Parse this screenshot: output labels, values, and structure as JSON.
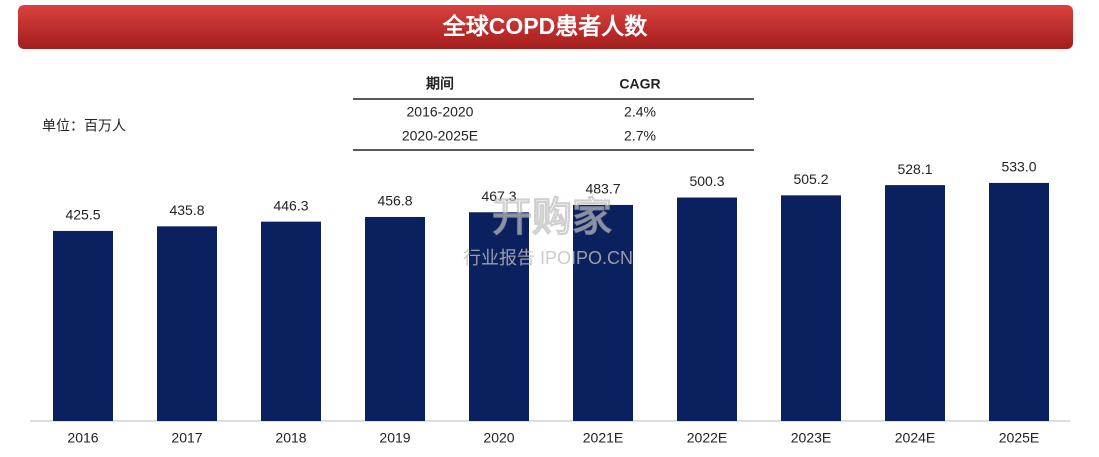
{
  "chart_data": {
    "type": "bar",
    "title": "全球COPD患者人数",
    "unit": "单位：百万人",
    "categories": [
      "2016",
      "2017",
      "2018",
      "2019",
      "2020",
      "2021E",
      "2022E",
      "2023E",
      "2024E",
      "2025E"
    ],
    "values": [
      425.5,
      435.8,
      446.3,
      456.8,
      467.3,
      483.7,
      500.3,
      505.2,
      528.1,
      533.0
    ],
    "value_labels": [
      "425.5",
      "435.8",
      "446.3",
      "456.8",
      "467.3",
      "483.7",
      "500.3",
      "505.2",
      "528.1",
      "533.0"
    ],
    "color": "#0b205e",
    "ylim": [
      0,
      600
    ],
    "cagr_table": {
      "header": [
        "期间",
        "CAGR"
      ],
      "rows": [
        [
          "2016-2020",
          "2.4%"
        ],
        [
          "2020-2025E",
          "2.7%"
        ]
      ]
    },
    "watermark": [
      "开购家",
      "行业报告 IPOIPO.CN"
    ]
  }
}
